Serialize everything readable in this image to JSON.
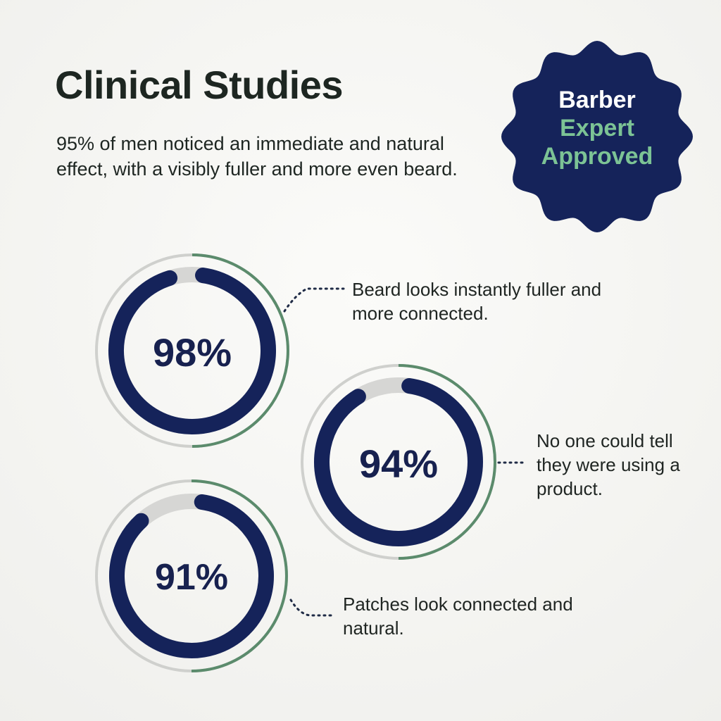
{
  "header": {
    "title": "Clinical Studies",
    "subtitle": "95% of men noticed an immediate and natural effect, with a visibly fuller and more even beard."
  },
  "badge": {
    "line1": "Barber",
    "line2": "Expert",
    "line3": "Approved",
    "color": "#15235a",
    "text_accent": "#7cc395"
  },
  "colors": {
    "ring_fill": "#15235a",
    "ring_track": "#d6d6d4",
    "outer_ring": "#5b8b6c",
    "outer_ring_rest": "#cfd0cd",
    "text": "#1d2621"
  },
  "chart_data": {
    "type": "donut",
    "title": "",
    "stats": [
      {
        "value": 98,
        "label": "98%",
        "caption": "Beard looks instantly fuller and more connected."
      },
      {
        "value": 94,
        "label": "94%",
        "caption": "No one could tell they were using a product."
      },
      {
        "value": 91,
        "label": "91%",
        "caption": "Patches look connected and natural."
      }
    ],
    "range": [
      0,
      100
    ]
  }
}
